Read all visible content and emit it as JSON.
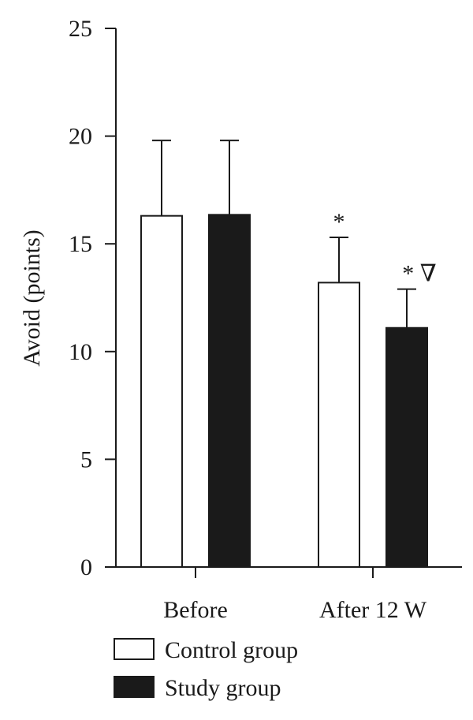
{
  "chart_data": {
    "type": "bar",
    "title": "",
    "xlabel": "",
    "ylabel": "Avoid (points)",
    "ylim": [
      0,
      25
    ],
    "yticks": [
      0,
      5,
      10,
      15,
      20,
      25
    ],
    "categories": [
      "Before",
      "After 12 W"
    ],
    "series": [
      {
        "name": "Control group",
        "color": "#ffffff",
        "values": [
          16.3,
          13.2
        ],
        "errors": [
          3.5,
          2.1
        ],
        "annotations": [
          "",
          "*"
        ]
      },
      {
        "name": "Study group",
        "color": "#1a1a1a",
        "values": [
          16.35,
          11.1
        ],
        "errors": [
          3.45,
          1.8
        ],
        "annotations": [
          "",
          "* ∇"
        ]
      }
    ],
    "legend_position": "bottom-left",
    "grid": false
  }
}
